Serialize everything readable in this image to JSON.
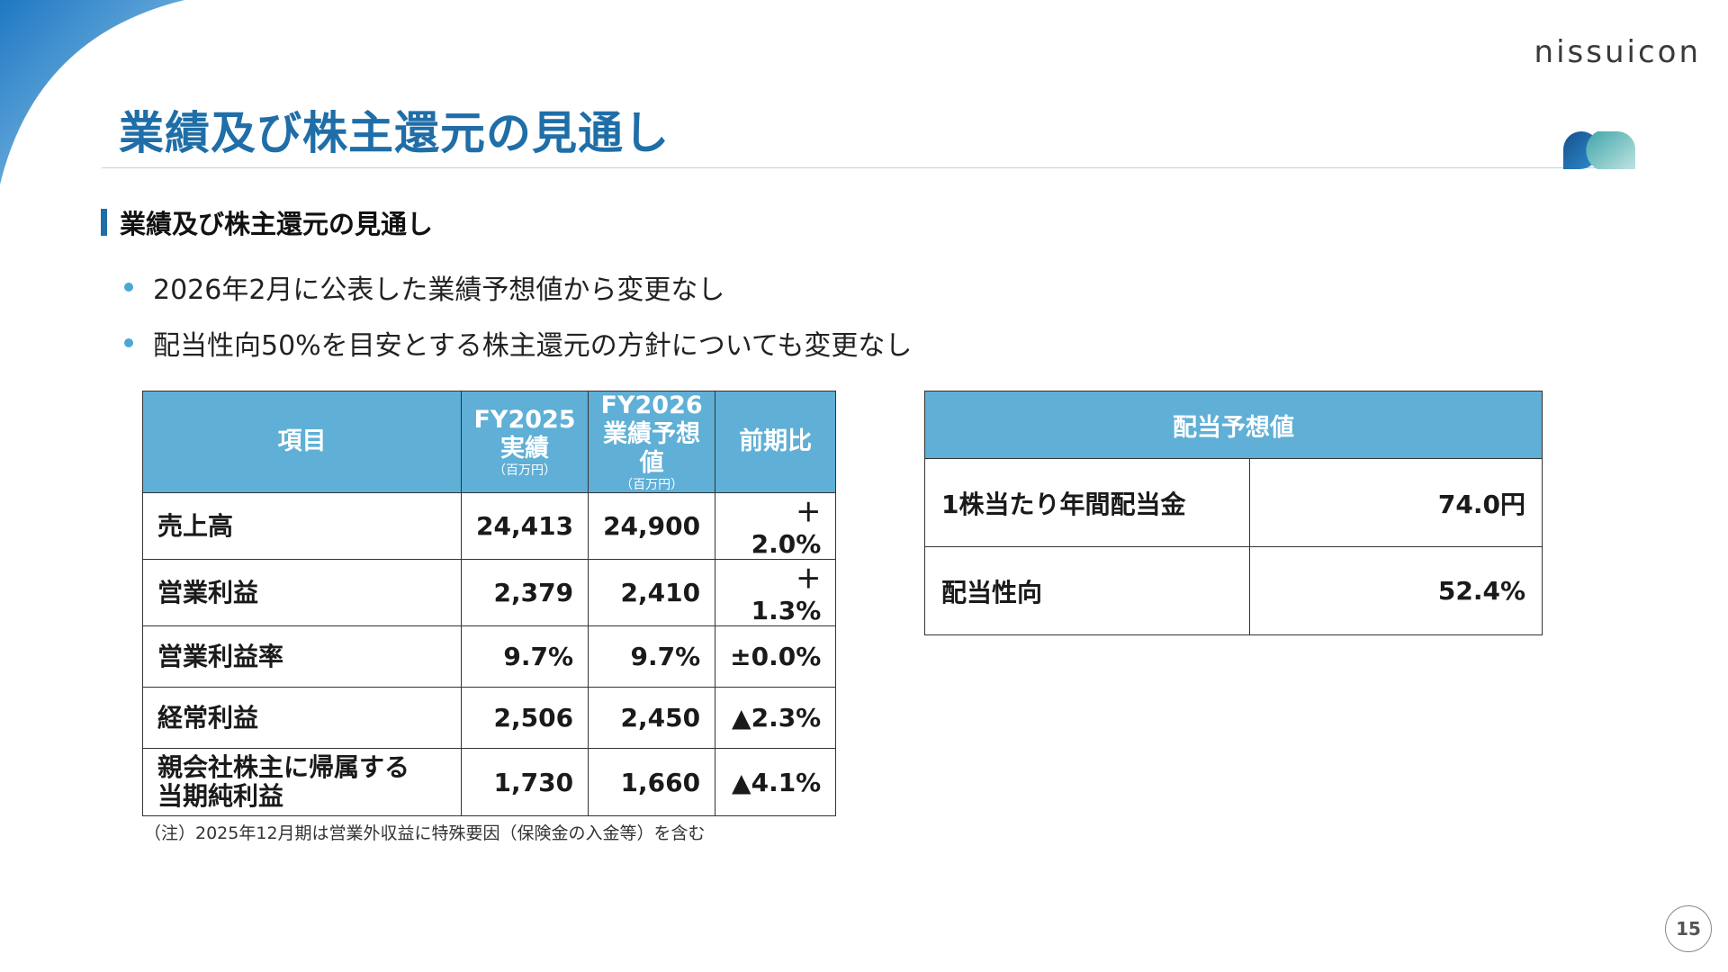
{
  "brand": {
    "logo_text": "nissuicon",
    "accent": "#1f6ea7",
    "header_blue": "#5fafd6"
  },
  "page_title": "業績及び株主還元の見通し",
  "section_title": "業績及び株主還元の見通し",
  "bullets": [
    "2026年2月に公表した業績予想値から変更なし",
    "配当性向50%を目安とする株主還元の方針についても変更なし"
  ],
  "results_table": {
    "headers": {
      "item": "項目",
      "fy2025_line1": "FY2025",
      "fy2025_line2": "実績",
      "fy2025_unit": "（百万円）",
      "fy2026_line1": "FY2026",
      "fy2026_line2": "業績予想値",
      "fy2026_unit": "（百万円）",
      "yoy": "前期比"
    },
    "rows": [
      {
        "item": "売上高",
        "fy2025": "24,413",
        "fy2026": "24,900",
        "yoy": "＋2.0%"
      },
      {
        "item": "営業利益",
        "fy2025": "2,379",
        "fy2026": "2,410",
        "yoy": "＋1.3%"
      },
      {
        "item": "営業利益率",
        "fy2025": "9.7%",
        "fy2026": "9.7%",
        "yoy": "±0.0%"
      },
      {
        "item": "経常利益",
        "fy2025": "2,506",
        "fy2026": "2,450",
        "yoy": "▲2.3%"
      },
      {
        "item_line1": "親会社株主に帰属する",
        "item_line2": "当期純利益",
        "fy2025": "1,730",
        "fy2026": "1,660",
        "yoy": "▲4.1%"
      }
    ]
  },
  "note": "（注）2025年12月期は営業外収益に特殊要因（保険金の入金等）を含む",
  "dividend_table": {
    "header": "配当予想値",
    "rows": [
      {
        "label": "1株当たり年間配当金",
        "value": "74.0円"
      },
      {
        "label": "配当性向",
        "value": "52.4%"
      }
    ]
  },
  "page_number": "15"
}
